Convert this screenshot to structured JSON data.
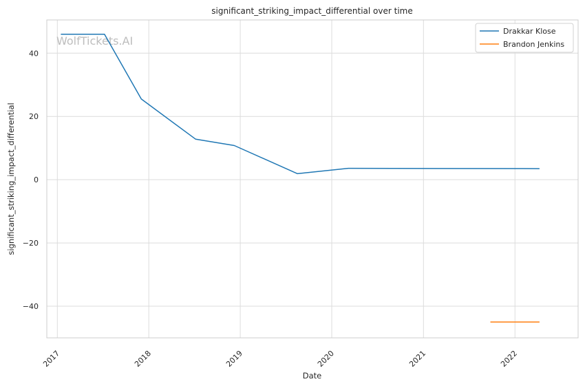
{
  "chart_data": {
    "type": "line",
    "title": "significant_striking_impact_differential over time",
    "xlabel": "Date",
    "ylabel": "significant_striking_impact_differential",
    "watermark": "WolfTickets.AI",
    "x_ticks": [
      "2017",
      "2018",
      "2019",
      "2020",
      "2021",
      "2022"
    ],
    "y_ticks": [
      -40,
      -20,
      0,
      20,
      40
    ],
    "xlim": [
      "2016-11-20",
      "2022-09-10"
    ],
    "ylim": [
      -50,
      50.5
    ],
    "grid": true,
    "legend_position": "top-right",
    "series": [
      {
        "name": "Drakkar Klose",
        "color": "#1f77b4",
        "points": [
          {
            "x": "2017-01-15",
            "y": 46.0
          },
          {
            "x": "2017-07-08",
            "y": 46.0
          },
          {
            "x": "2017-12-02",
            "y": 25.5
          },
          {
            "x": "2018-07-07",
            "y": 12.8
          },
          {
            "x": "2018-12-08",
            "y": 10.8
          },
          {
            "x": "2019-08-17",
            "y": 1.9
          },
          {
            "x": "2020-03-07",
            "y": 3.6
          },
          {
            "x": "2022-04-09",
            "y": 3.5
          }
        ]
      },
      {
        "name": "Brandon Jenkins",
        "color": "#ff7f0e",
        "points": [
          {
            "x": "2021-09-25",
            "y": -45.0
          },
          {
            "x": "2022-04-09",
            "y": -45.0
          }
        ]
      }
    ]
  }
}
